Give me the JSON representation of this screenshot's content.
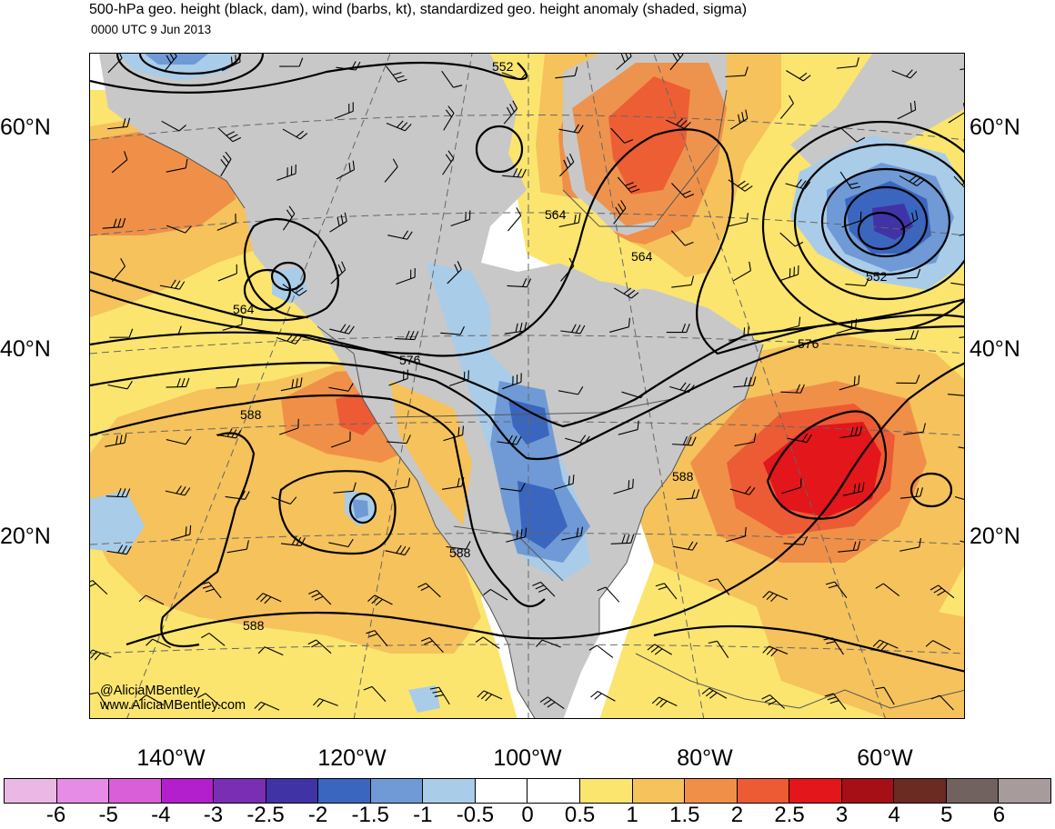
{
  "header": {
    "title": "500-hPa geo. height (black, dam), wind (barbs, kt), standardized geo. height anomaly (shaded, sigma)",
    "valid_time": "0000 UTC 9 Jun 2013"
  },
  "latitude_labels": [
    "60°N",
    "40°N",
    "20°N"
  ],
  "longitude_labels": [
    "140°W",
    "120°W",
    "100°W",
    "80°W",
    "60°W"
  ],
  "contour_labels": [
    "552",
    "564",
    "564",
    "564",
    "552",
    "576",
    "576",
    "588",
    "588",
    "588",
    "588"
  ],
  "credit": {
    "handle": "@AliciaMBentley",
    "website": "www.AliciaMBentley.com"
  },
  "colorbar": {
    "labels": [
      "-6",
      "-5",
      "-4",
      "-3",
      "-2.5",
      "-2",
      "-1.5",
      "-1",
      "-0.5",
      "0",
      "0.5",
      "1",
      "1.5",
      "2",
      "2.5",
      "3",
      "4",
      "5",
      "6"
    ],
    "colors": [
      "#ebb8e6",
      "#e68ce6",
      "#d95fd9",
      "#b31fcc",
      "#7a2eb3",
      "#4033a6",
      "#3a66bf",
      "#6f9ad6",
      "#a9cce8",
      "#ffffff",
      "#ffffff",
      "#fbe56e",
      "#f5c25c",
      "#f09048",
      "#ec5b34",
      "#e2161b",
      "#a50f15",
      "#6b2a22",
      "#72625f",
      "#a89b9b"
    ]
  },
  "anomaly_colors": {
    "land": "#c8c8c8",
    "positive_1": "#fbe56e",
    "positive_2": "#f5c25c",
    "positive_3": "#f09048",
    "positive_4": "#ec5b34",
    "positive_5": "#e2161b",
    "negative_1": "#a9cce8",
    "negative_2": "#6f9ad6",
    "negative_3": "#3a66bf",
    "negative_4": "#4033a6"
  }
}
